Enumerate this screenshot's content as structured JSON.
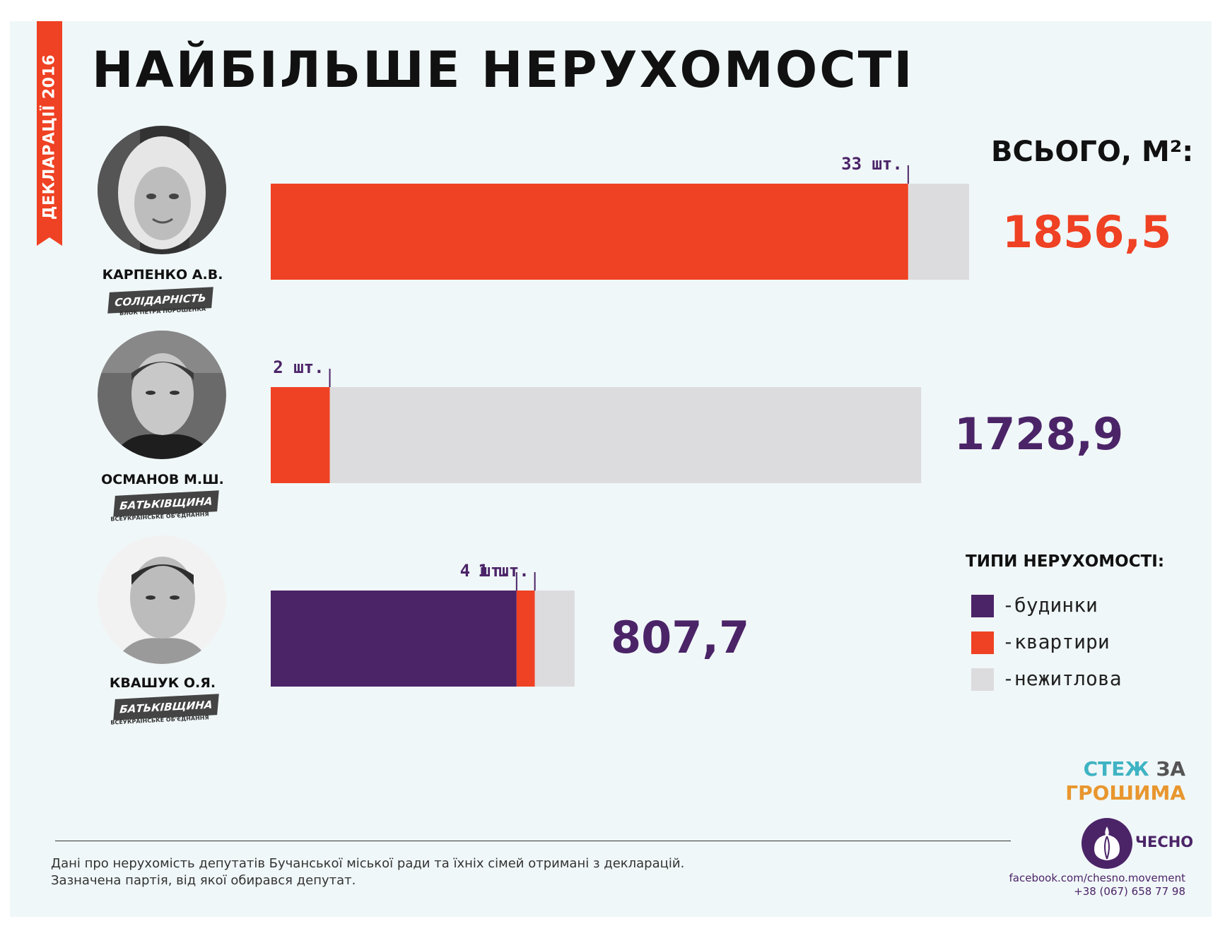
{
  "ribbon_label": "ДЕКЛАРАЦІЇ 2016",
  "title": "НАЙБІЛЬШЕ НЕРУХОМОСТІ",
  "total_label": "ВСЬОГО, М²:",
  "colors": {
    "houses": "#4b2468",
    "apartments": "#ef4123",
    "nonresidential": "#dcdcde",
    "accent_purple": "#4b2468",
    "accent_red": "#ef4123"
  },
  "chart_data": {
    "type": "bar",
    "orientation": "horizontal",
    "stacked": true,
    "title": "НАЙБІЛЬШЕ НЕРУХОМОСТІ",
    "unit": "м²",
    "series_names": [
      "-будинки",
      "-квартири",
      "-нежитлова"
    ],
    "rows": [
      {
        "name": "КАРПЕНКО А.В.",
        "party": "СОЛІДАРНІСТЬ",
        "party_sub": "БЛОК ПЕТРА ПОРОШЕНКА",
        "total": 1856.5,
        "total_label": "1856,5",
        "segments": [
          {
            "type": "houses",
            "value": 0
          },
          {
            "type": "apartments",
            "value": 1694.6,
            "count_label": "33 шт."
          },
          {
            "type": "nonresidential",
            "value": 161.9
          }
        ]
      },
      {
        "name": "ОСМАНОВ М.Ш.",
        "party": "БАТЬКІВЩИНА",
        "party_sub": "ВСЕУКРАЇНСЬКЕ ОБ'ЄДНАННЯ",
        "total": 1728.9,
        "total_label": "1728,9",
        "segments": [
          {
            "type": "houses",
            "value": 0
          },
          {
            "type": "apartments",
            "value": 157,
            "count_label": "2 шт."
          },
          {
            "type": "nonresidential",
            "value": 1571.9
          }
        ]
      },
      {
        "name": "КВАШУК О.Я.",
        "party": "БАТЬКІВЩИНА",
        "party_sub": "ВСЕУКРАЇНСЬКЕ ОБ'ЄДНАННЯ",
        "total": 807.7,
        "total_label": "807,7",
        "segments": [
          {
            "type": "houses",
            "value": 653.6,
            "count_label": "4 шт."
          },
          {
            "type": "apartments",
            "value": 48.5,
            "count_label": "1 шт."
          },
          {
            "type": "nonresidential",
            "value": 105.6
          }
        ]
      }
    ],
    "xlim": [
      0,
      1856.5
    ],
    "legend_title": "ТИПИ НЕРУХОМОСТІ:",
    "legend_position": "right"
  },
  "legend": [
    {
      "label": "-будинки",
      "type": "houses"
    },
    {
      "label": "-квартири",
      "type": "apartments"
    },
    {
      "label": "-нежитлова",
      "type": "nonresidential"
    }
  ],
  "logo": {
    "line1a": "СТЕЖ",
    "line1b": "ЗА",
    "line2": "ГРОШИМА",
    "chesno": "ЧЕСНО"
  },
  "footer": {
    "note_line1": "Дані про нерухомість депутатів Бучанської міської ради та їхніх сімей отримані з декларацій.",
    "note_line2": "Зазначена партія, від якої обирався депутат.",
    "facebook": "facebook.com/chesno.movement",
    "phone": "+38 (067) 658 77 98"
  }
}
